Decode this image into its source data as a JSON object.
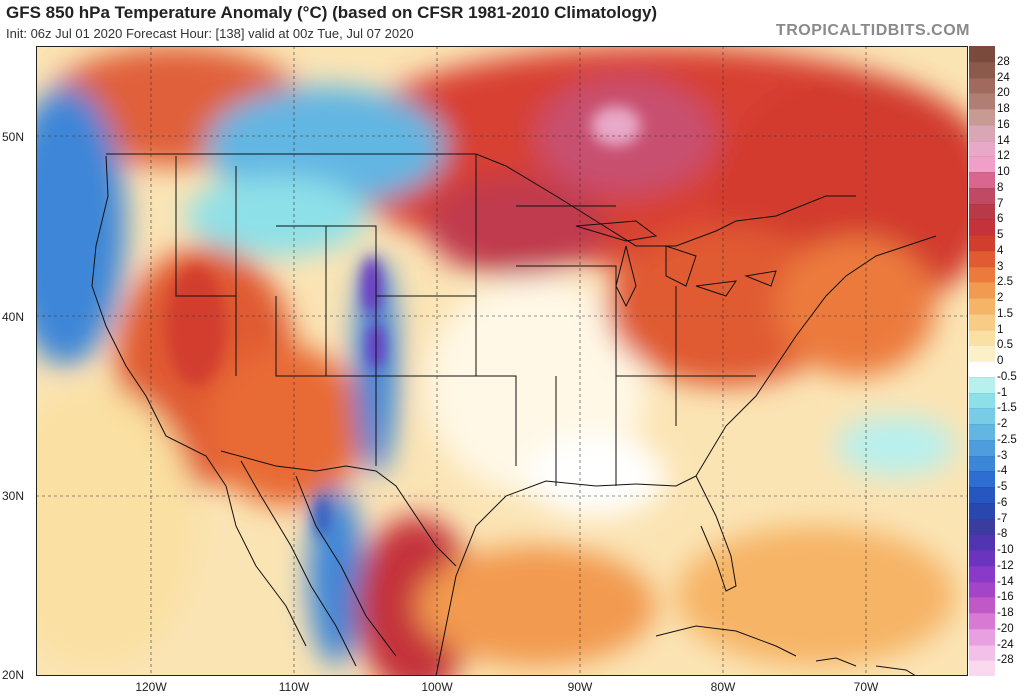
{
  "header": {
    "title": "GFS 850 hPa Temperature Anomaly (°C) (based on CFSR 1981-2010 Climatology)",
    "subtitle": "Init: 06z Jul 01 2020   Forecast Hour: [138]   valid at 00z Tue, Jul 07 2020",
    "watermark": "TROPICALTIDBITS.COM"
  },
  "map": {
    "projection": "lat-lon",
    "lon_range": [
      -128,
      -63
    ],
    "lat_range": [
      20,
      55
    ],
    "lat_ticks": [
      "50N",
      "40N",
      "30N",
      "20N"
    ],
    "lon_ticks": [
      "120W",
      "110W",
      "100W",
      "90W",
      "80W",
      "70W"
    ]
  },
  "legend": {
    "labels": [
      "28",
      "24",
      "20",
      "18",
      "16",
      "14",
      "12",
      "10",
      "8",
      "7",
      "6",
      "5",
      "4",
      "3",
      "2.5",
      "2",
      "1.5",
      "1",
      "0.5",
      "0",
      "-0.5",
      "-1",
      "-1.5",
      "-2",
      "-2.5",
      "-3",
      "-4",
      "-5",
      "-6",
      "-7",
      "-8",
      "-10",
      "-12",
      "-14",
      "-16",
      "-18",
      "-20",
      "-24",
      "-28"
    ],
    "colors": [
      "#8c5a4a",
      "#a06a5e",
      "#b07e74",
      "#c89a94",
      "#d8a6b4",
      "#e8a8c8",
      "#f0a0c8",
      "#d8668e",
      "#c04a64",
      "#b83a46",
      "#c4323a",
      "#d23e2e",
      "#e05a32",
      "#ec7a3c",
      "#f29a50",
      "#f6b466",
      "#f8cc84",
      "#fae0a2",
      "#fcf0c8",
      "#ffffff",
      "#b8f0ee",
      "#8ee0e8",
      "#78cce6",
      "#62b6e2",
      "#4e9ede",
      "#3c86d8",
      "#2e6ed0",
      "#2656c0",
      "#2848b0",
      "#3a3ca0",
      "#5034b0",
      "#6a34c0",
      "#8a3ac8",
      "#a444c8",
      "#c058c8",
      "#d87ad4",
      "#e8a0e0",
      "#f2c0e8",
      "#fad8f0"
    ]
  }
}
